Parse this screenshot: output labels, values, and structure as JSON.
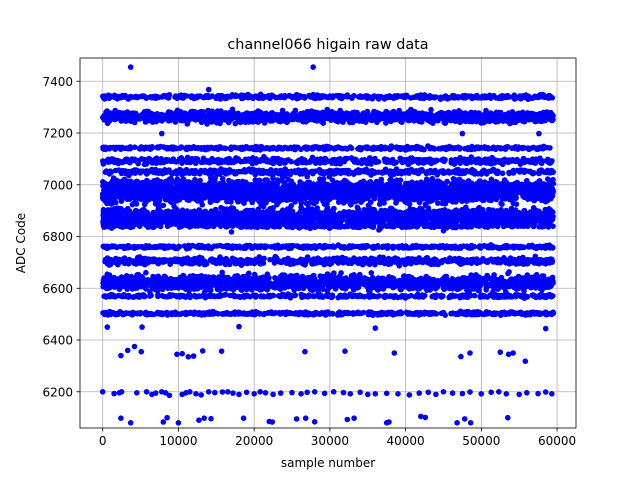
{
  "chart_data": {
    "type": "scatter",
    "title": "channel066 higain raw data",
    "xlabel": "sample number",
    "ylabel": "ADC Code",
    "xlim": [
      -3000,
      62500
    ],
    "ylim": [
      6060,
      7490
    ],
    "xticks": [
      0,
      10000,
      20000,
      30000,
      40000,
      50000,
      60000
    ],
    "yticks": [
      6200,
      6400,
      6600,
      6800,
      7000,
      7200,
      7400
    ],
    "grid": true,
    "marker_color": "#0000ff",
    "x_range_of_samples": [
      0,
      59500
    ],
    "bands": [
      {
        "center": 7340,
        "spread": 8,
        "count": 420
      },
      {
        "center": 7262,
        "spread": 22,
        "count": 1400
      },
      {
        "center": 7142,
        "spread": 6,
        "count": 420
      },
      {
        "center": 7092,
        "spread": 12,
        "count": 520
      },
      {
        "center": 7050,
        "spread": 10,
        "count": 450
      },
      {
        "center": 6975,
        "spread": 45,
        "count": 2600
      },
      {
        "center": 6875,
        "spread": 35,
        "count": 1900
      },
      {
        "center": 6840,
        "spread": 6,
        "count": 250
      },
      {
        "center": 6760,
        "spread": 6,
        "count": 450
      },
      {
        "center": 6705,
        "spread": 14,
        "count": 600
      },
      {
        "center": 6622,
        "spread": 30,
        "count": 1500
      },
      {
        "center": 6570,
        "spread": 6,
        "count": 350
      },
      {
        "center": 6503,
        "spread": 6,
        "count": 520
      }
    ],
    "outliers": [
      {
        "x": 3700,
        "y": 7455
      },
      {
        "x": 27800,
        "y": 7455
      },
      {
        "x": 14000,
        "y": 7368
      },
      {
        "x": 7800,
        "y": 7198
      },
      {
        "x": 47500,
        "y": 7198
      },
      {
        "x": 57600,
        "y": 7198
      },
      {
        "x": 17000,
        "y": 6818
      },
      {
        "x": 45000,
        "y": 6822
      },
      {
        "x": 5200,
        "y": 6450
      },
      {
        "x": 600,
        "y": 6450
      },
      {
        "x": 18000,
        "y": 6452
      },
      {
        "x": 36000,
        "y": 6446
      },
      {
        "x": 58500,
        "y": 6444
      },
      {
        "x": 2400,
        "y": 6340
      },
      {
        "x": 3300,
        "y": 6360
      },
      {
        "x": 4200,
        "y": 6375
      },
      {
        "x": 5100,
        "y": 6355
      },
      {
        "x": 9800,
        "y": 6345
      },
      {
        "x": 10500,
        "y": 6347
      },
      {
        "x": 11300,
        "y": 6335
      },
      {
        "x": 12000,
        "y": 6338
      },
      {
        "x": 13200,
        "y": 6358
      },
      {
        "x": 15700,
        "y": 6357
      },
      {
        "x": 26700,
        "y": 6355
      },
      {
        "x": 32000,
        "y": 6357
      },
      {
        "x": 38500,
        "y": 6350
      },
      {
        "x": 47300,
        "y": 6336
      },
      {
        "x": 48500,
        "y": 6350
      },
      {
        "x": 52500,
        "y": 6353
      },
      {
        "x": 53600,
        "y": 6345
      },
      {
        "x": 54200,
        "y": 6350
      },
      {
        "x": 55800,
        "y": 6318
      },
      {
        "x": 0,
        "y": 6200
      },
      {
        "x": 1500,
        "y": 6193
      },
      {
        "x": 2200,
        "y": 6196
      },
      {
        "x": 2500,
        "y": 6200
      },
      {
        "x": 4500,
        "y": 6196
      },
      {
        "x": 5800,
        "y": 6200
      },
      {
        "x": 6500,
        "y": 6190
      },
      {
        "x": 7000,
        "y": 6195
      },
      {
        "x": 7800,
        "y": 6200
      },
      {
        "x": 8300,
        "y": 6196
      },
      {
        "x": 8800,
        "y": 6186
      },
      {
        "x": 10500,
        "y": 6190
      },
      {
        "x": 11000,
        "y": 6196
      },
      {
        "x": 11500,
        "y": 6200
      },
      {
        "x": 12300,
        "y": 6192
      },
      {
        "x": 13000,
        "y": 6188
      },
      {
        "x": 14000,
        "y": 6200
      },
      {
        "x": 14800,
        "y": 6197
      },
      {
        "x": 15800,
        "y": 6199
      },
      {
        "x": 16500,
        "y": 6200
      },
      {
        "x": 17200,
        "y": 6195
      },
      {
        "x": 18000,
        "y": 6190
      },
      {
        "x": 19000,
        "y": 6198
      },
      {
        "x": 20000,
        "y": 6192
      },
      {
        "x": 20800,
        "y": 6200
      },
      {
        "x": 21500,
        "y": 6196
      },
      {
        "x": 22500,
        "y": 6190
      },
      {
        "x": 23500,
        "y": 6195
      },
      {
        "x": 25000,
        "y": 6197
      },
      {
        "x": 26200,
        "y": 6192
      },
      {
        "x": 27000,
        "y": 6198
      },
      {
        "x": 28000,
        "y": 6200
      },
      {
        "x": 29300,
        "y": 6194
      },
      {
        "x": 30500,
        "y": 6200
      },
      {
        "x": 31800,
        "y": 6197
      },
      {
        "x": 32700,
        "y": 6192
      },
      {
        "x": 34000,
        "y": 6198
      },
      {
        "x": 35000,
        "y": 6190
      },
      {
        "x": 36000,
        "y": 6192
      },
      {
        "x": 37500,
        "y": 6194
      },
      {
        "x": 39000,
        "y": 6192
      },
      {
        "x": 40500,
        "y": 6188
      },
      {
        "x": 41800,
        "y": 6195
      },
      {
        "x": 43000,
        "y": 6198
      },
      {
        "x": 44000,
        "y": 6190
      },
      {
        "x": 45000,
        "y": 6200
      },
      {
        "x": 46200,
        "y": 6195
      },
      {
        "x": 47500,
        "y": 6193
      },
      {
        "x": 48500,
        "y": 6199
      },
      {
        "x": 50000,
        "y": 6192
      },
      {
        "x": 51300,
        "y": 6198
      },
      {
        "x": 52300,
        "y": 6200
      },
      {
        "x": 53300,
        "y": 6192
      },
      {
        "x": 55000,
        "y": 6190
      },
      {
        "x": 56000,
        "y": 6196
      },
      {
        "x": 57500,
        "y": 6193
      },
      {
        "x": 58500,
        "y": 6199
      },
      {
        "x": 59300,
        "y": 6192
      },
      {
        "x": 2400,
        "y": 6098
      },
      {
        "x": 3700,
        "y": 6080
      },
      {
        "x": 8000,
        "y": 6083
      },
      {
        "x": 8500,
        "y": 6100
      },
      {
        "x": 10000,
        "y": 6080
      },
      {
        "x": 12700,
        "y": 6090
      },
      {
        "x": 13400,
        "y": 6098
      },
      {
        "x": 14300,
        "y": 6096
      },
      {
        "x": 18600,
        "y": 6098
      },
      {
        "x": 22000,
        "y": 6085
      },
      {
        "x": 22400,
        "y": 6083
      },
      {
        "x": 25600,
        "y": 6095
      },
      {
        "x": 26800,
        "y": 6098
      },
      {
        "x": 28000,
        "y": 6084
      },
      {
        "x": 32300,
        "y": 6093
      },
      {
        "x": 33200,
        "y": 6098
      },
      {
        "x": 37500,
        "y": 6080
      },
      {
        "x": 37800,
        "y": 6083
      },
      {
        "x": 42000,
        "y": 6105
      },
      {
        "x": 42600,
        "y": 6101
      },
      {
        "x": 46800,
        "y": 6080
      },
      {
        "x": 47800,
        "y": 6095
      },
      {
        "x": 48600,
        "y": 6080
      },
      {
        "x": 53500,
        "y": 6100
      }
    ]
  }
}
